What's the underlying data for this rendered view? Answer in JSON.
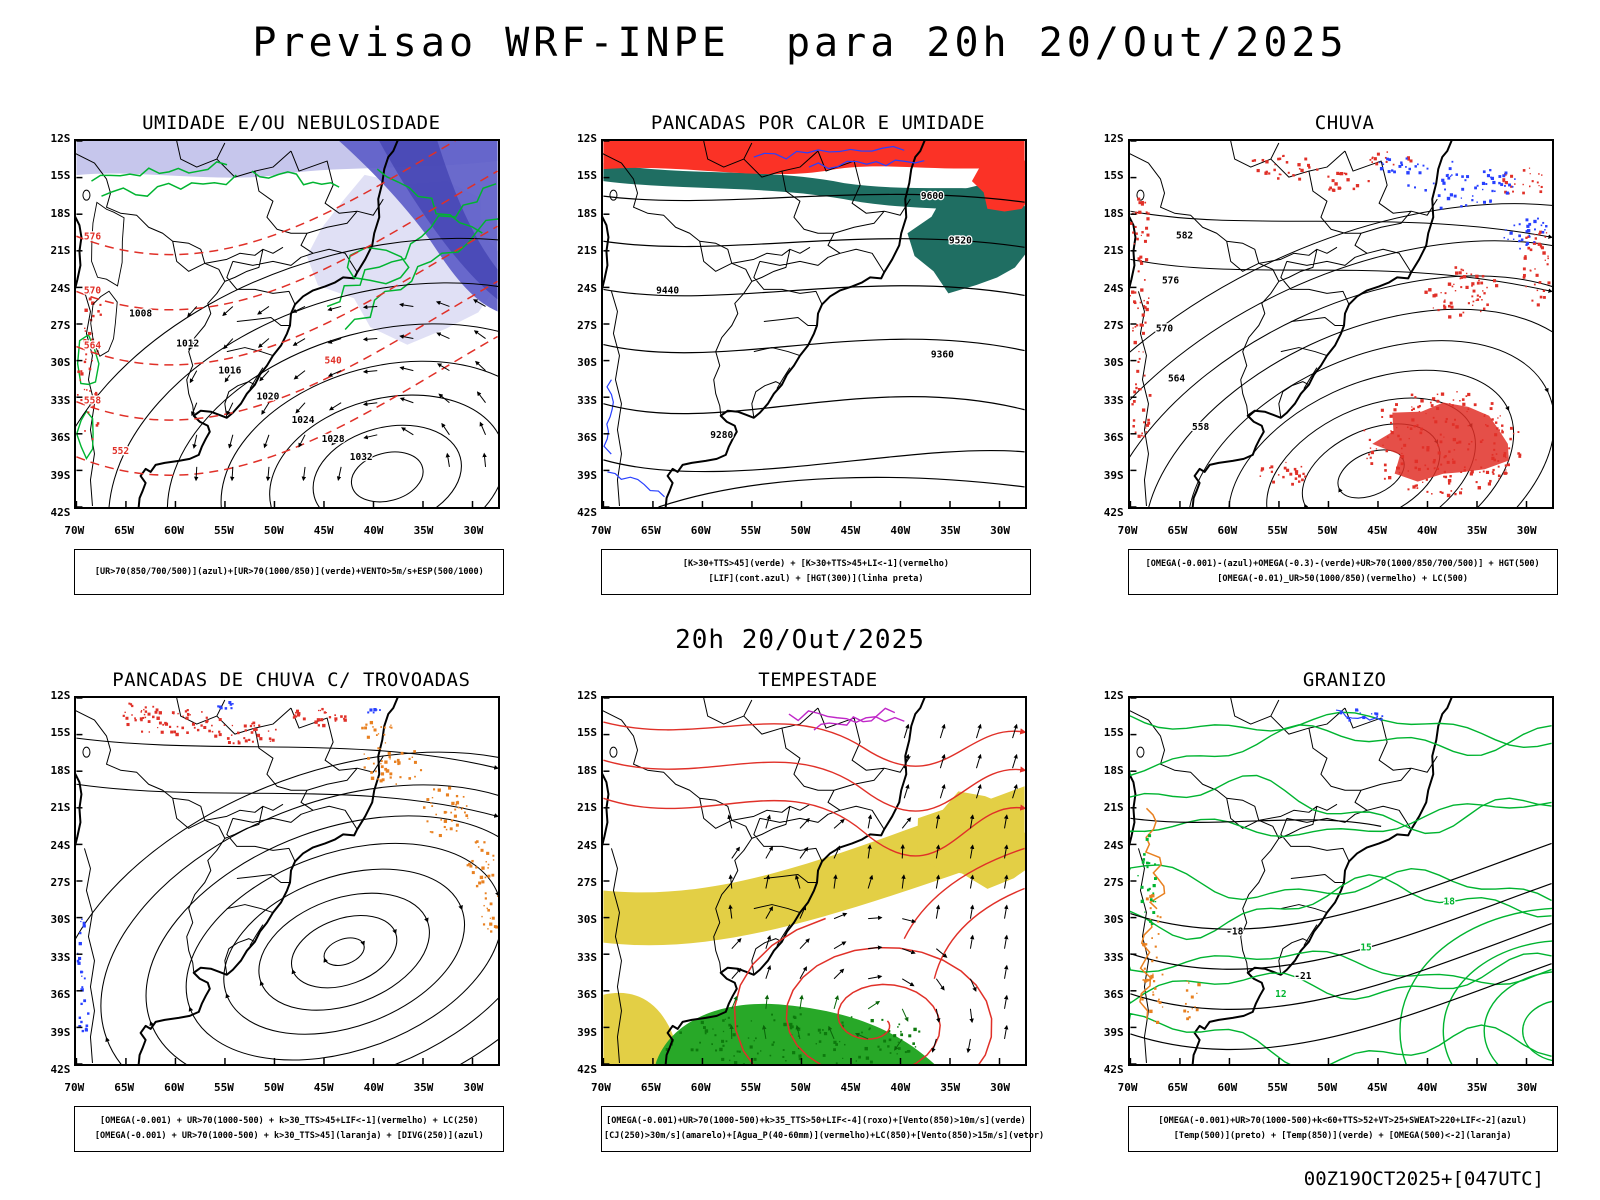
{
  "page": {
    "title": "Previsao WRF-INPE  para 20h 20/Out/2025",
    "valid_time": "20h 20/Out/2025",
    "run_info": "00Z19OCT2025+[047UTC]"
  },
  "axes": {
    "lat": [
      "12S",
      "15S",
      "18S",
      "21S",
      "24S",
      "27S",
      "30S",
      "33S",
      "36S",
      "39S",
      "42S"
    ],
    "lon": [
      "70W",
      "65W",
      "60W",
      "55W",
      "50W",
      "45W",
      "40W",
      "35W",
      "30W"
    ]
  },
  "colors": {
    "contour_black": "#000000",
    "contour_red": "#e03028",
    "contour_green": "#00b430",
    "contour_blue": "#2840ff",
    "contour_purple": "#c028c8",
    "speckle_orange": "#e88020",
    "arrow_green": "#0a650a",
    "shade_teal": "#1f6e62",
    "shade_red": "#fb3226",
    "shade_yellow": "#e3cf45",
    "shade_green": "#28a828",
    "shade_blue_purple": "#5d5dc8",
    "shade_blue_dark": "#4646b4",
    "shade_lavender": "#c6c6ec"
  },
  "panels": [
    {
      "key": "umidade",
      "title": "UMIDADE E/OU NEBULOSIDADE",
      "caption": [
        "[UR>70(850/700/500)](azul)+[UR>70(1000/850)](verde)+VENTO>5m/s+ESP(500/1000)"
      ],
      "contour_labels": {
        "pressure": [
          "1008",
          "1012",
          "1016",
          "1020",
          "1024",
          "1028",
          "1032"
        ],
        "thickness": [
          "540",
          "552",
          "558",
          "564",
          "570",
          "576"
        ]
      }
    },
    {
      "key": "pancadas-calor-umidade",
      "title": "PANCADAS POR CALOR E UMIDADE",
      "caption": [
        "[K>30+TTS>45](verde) + [K>30+TTS>45+LI<-1](vermelho)",
        "[LIF](cont.azul) + [HGT(300)](linha preta)"
      ],
      "contour_labels": {
        "height300": [
          "9280",
          "9360",
          "9440",
          "9520",
          "9600"
        ]
      }
    },
    {
      "key": "chuva",
      "title": "CHUVA",
      "caption": [
        "[OMEGA(-0.001)-(azul)+OMEGA(-0.3)-(verde)+UR>70(1000/850/700/500)] + HGT(500)",
        "[OMEGA(-0.01)_UR>50(1000/850)(vermelho) + LC(500)"
      ],
      "contour_labels": {
        "height500": [
          "558",
          "564",
          "570",
          "576",
          "582"
        ]
      }
    },
    {
      "key": "trovoadas",
      "title": "PANCADAS DE CHUVA C/ TROVOADAS",
      "caption": [
        "[OMEGA(-0.001) + UR>70(1000-500) + k>30_TTS>45+LIF<-1](vermelho) + LC(250)",
        "[OMEGA(-0.001) + UR>70(1000-500) + k>30_TTS>45](laranja) + [DIVG(250)](azul)"
      ]
    },
    {
      "key": "tempestade",
      "title": "TEMPESTADE",
      "caption": [
        "[OMEGA(-0.001)+UR>70(1000-500)+k>35_TTS>50+LIF<-4](roxo)+[Vento(850)>10m/s](verde)",
        "[CJ(250)>30m/s](amarelo)+[Agua_P(40-60mm)](vermelho)+LC(850)+[Vento(850)>15m/s](vetor)"
      ]
    },
    {
      "key": "granizo",
      "title": "GRANIZO",
      "caption": [
        "[OMEGA(-0.001)+UR>70(1000-500)+k<60+TTS>52+VT>25+SWEAT>220+LIF<-2](azul)",
        "[Temp(500)](preto) + [Temp(850)](verde) + [OMEGA(500)<-2](laranja)"
      ],
      "contour_labels": {
        "temp850": [
          "12",
          "15",
          "18"
        ],
        "temp500": [
          "-18",
          "-21"
        ]
      }
    }
  ]
}
